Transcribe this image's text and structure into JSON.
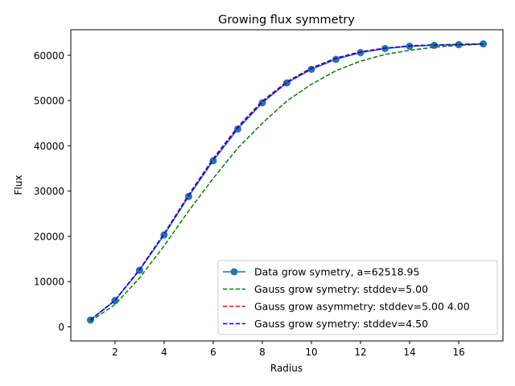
{
  "chart_data": {
    "type": "line",
    "title": "Growing flux symmetry",
    "xlabel": "Radius",
    "ylabel": "Flux",
    "xlim": [
      0.2,
      17.8
    ],
    "ylim": [
      -3125.95,
      65645.0
    ],
    "xticks": [
      2,
      4,
      6,
      8,
      10,
      12,
      14,
      16
    ],
    "xtick_labels": [
      "2",
      "4",
      "6",
      "8",
      "10",
      "12",
      "14",
      "16"
    ],
    "yticks": [
      0,
      10000,
      20000,
      30000,
      40000,
      50000,
      60000
    ],
    "ytick_labels": [
      "0",
      "10000",
      "20000",
      "30000",
      "40000",
      "50000",
      "60000"
    ],
    "grid": false,
    "legend_position": "lower-right",
    "series": [
      {
        "name": "Data grow symetry, a=62518.95",
        "color": "#1f77b4",
        "style": "solid-with-markers",
        "x": [
          1,
          2,
          3,
          4,
          5,
          6,
          7,
          8,
          9,
          10,
          11,
          12,
          13,
          14,
          15,
          16,
          17
        ],
        "y": [
          1500,
          5800,
          12500,
          20300,
          28800,
          36700,
          43700,
          49500,
          53900,
          56900,
          59100,
          60600,
          61500,
          62000,
          62200,
          62350,
          62519
        ]
      },
      {
        "name": "Gauss grow symetry: stddev=5.00",
        "color": "#008000",
        "style": "dashed",
        "x": [
          1,
          2,
          3,
          4,
          5,
          6,
          7,
          8,
          9,
          10,
          11,
          12,
          13,
          14,
          15,
          16,
          17
        ],
        "y": [
          1250,
          4900,
          10800,
          17900,
          25600,
          32800,
          39500,
          45000,
          49900,
          53600,
          56600,
          58700,
          60200,
          61100,
          61800,
          62200,
          62450
        ]
      },
      {
        "name": "Gauss grow asymmetry: stddev=5.00 4.00",
        "color": "#ff0000",
        "style": "dashed",
        "x": [
          1,
          2,
          3,
          4,
          5,
          6,
          7,
          8,
          9,
          10,
          11,
          12,
          13,
          14,
          15,
          16,
          17
        ],
        "y": [
          1540,
          5900,
          12700,
          20600,
          29200,
          37200,
          44200,
          49900,
          54200,
          57200,
          59400,
          60800,
          61600,
          62100,
          62300,
          62400,
          62519
        ]
      },
      {
        "name": "Gauss grow symetry: stddev=4.50",
        "color": "#0000ff",
        "style": "dashed",
        "x": [
          1,
          2,
          3,
          4,
          5,
          6,
          7,
          8,
          9,
          10,
          11,
          12,
          13,
          14,
          15,
          16,
          17
        ],
        "y": [
          1520,
          5850,
          12600,
          20500,
          29000,
          37000,
          44000,
          49700,
          54000,
          57100,
          59300,
          60700,
          61550,
          62050,
          62280,
          62380,
          62519
        ]
      }
    ]
  }
}
